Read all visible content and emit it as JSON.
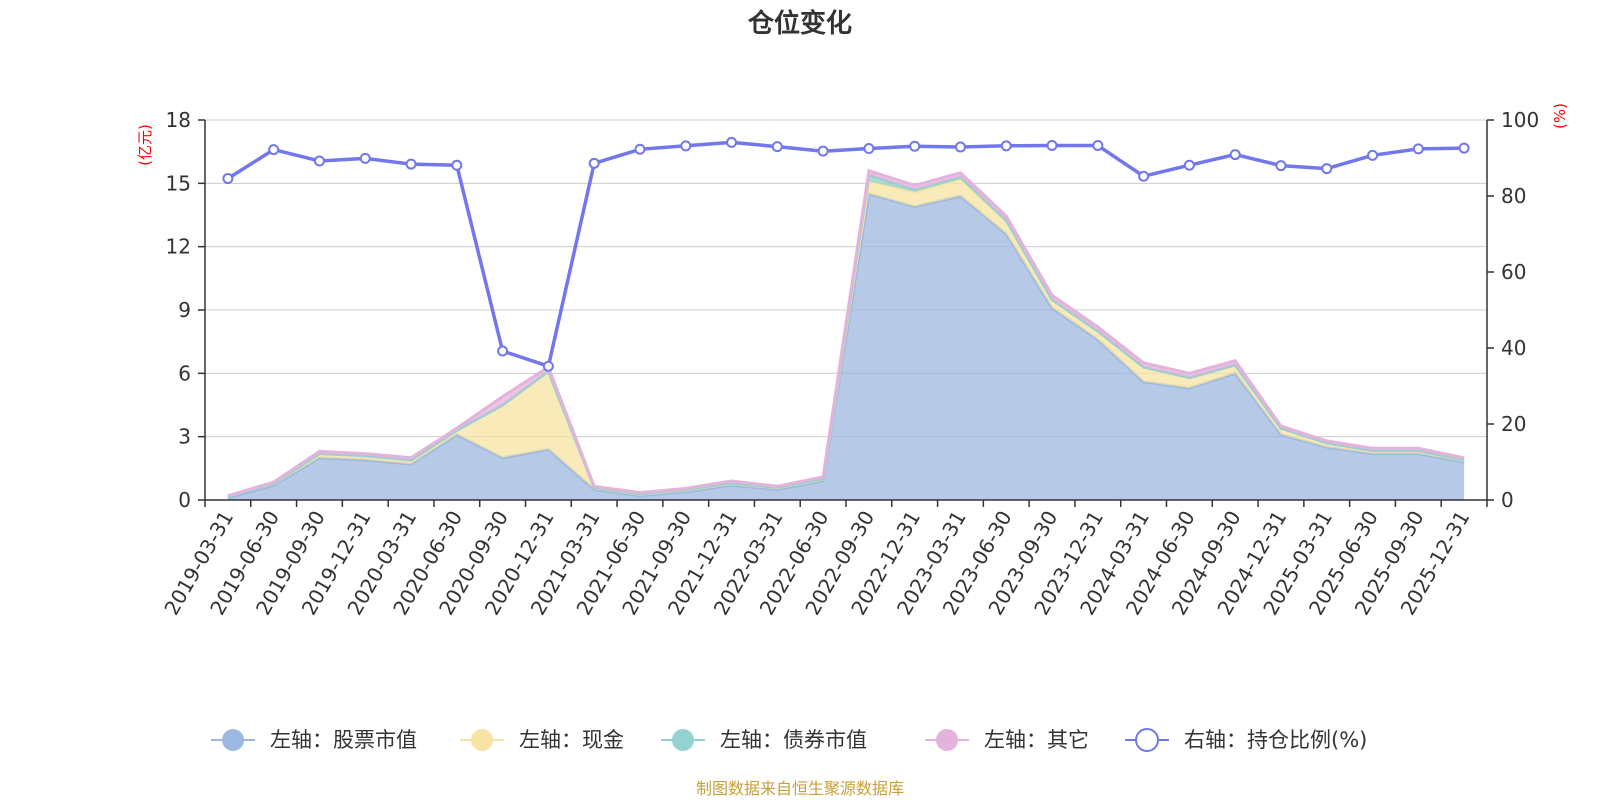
{
  "chart_data": {
    "type": "area",
    "title": "仓位变化",
    "source": "制图数据来自恒生聚源数据库",
    "left_axis": {
      "unit": "(亿元)",
      "ticks": [
        "0",
        "3",
        "6",
        "9",
        "12",
        "15",
        "18"
      ],
      "range": [
        0,
        18
      ]
    },
    "right_axis": {
      "unit": "(%)",
      "ticks": [
        "0",
        "20",
        "40",
        "60",
        "80",
        "100"
      ],
      "range": [
        0,
        100
      ]
    },
    "categories": [
      "2019-03-31",
      "2019-06-30",
      "2019-09-30",
      "2019-12-31",
      "2020-03-31",
      "2020-06-30",
      "2020-09-30",
      "2020-12-31",
      "2021-03-31",
      "2021-06-30",
      "2021-09-30",
      "2021-12-31",
      "2022-03-31",
      "2022-06-30",
      "2022-09-30",
      "2022-12-31",
      "2023-03-31",
      "2023-06-30",
      "2023-09-30",
      "2023-12-31",
      "2024-03-31",
      "2024-06-30",
      "2024-09-30",
      "2024-12-31",
      "2025-03-31",
      "2025-06-30",
      "2025-09-30",
      "2025-12-31"
    ],
    "series": [
      {
        "name": "左轴：股票市值",
        "axis": "left",
        "color": "#9db8e0",
        "values": [
          0.1,
          0.7,
          2.0,
          1.9,
          1.7,
          3.1,
          2.0,
          2.4,
          0.5,
          0.2,
          0.4,
          0.7,
          0.5,
          0.9,
          14.5,
          13.9,
          14.4,
          12.6,
          9.1,
          7.6,
          5.6,
          5.3,
          6.0,
          3.1,
          2.5,
          2.2,
          2.2,
          1.8
        ]
      },
      {
        "name": "左轴：现金",
        "axis": "left",
        "color": "#f7e3a3",
        "values": [
          0.05,
          0.1,
          0.2,
          0.2,
          0.2,
          0.2,
          2.5,
          3.7,
          0.1,
          0.1,
          0.1,
          0.1,
          0.1,
          0.1,
          0.6,
          0.7,
          0.8,
          0.6,
          0.4,
          0.4,
          0.7,
          0.5,
          0.4,
          0.3,
          0.2,
          0.15,
          0.15,
          0.1
        ]
      },
      {
        "name": "左轴：债券市值",
        "axis": "left",
        "color": "#93d2d0",
        "values": [
          0,
          0,
          0,
          0,
          0,
          0,
          0,
          0,
          0,
          0,
          0,
          0,
          0,
          0,
          0.3,
          0.1,
          0.1,
          0.05,
          0,
          0,
          0,
          0,
          0,
          0,
          0,
          0,
          0,
          0
        ]
      },
      {
        "name": "左轴：其它",
        "axis": "left",
        "color": "#e4b3dc",
        "values": [
          0.05,
          0.05,
          0.1,
          0.1,
          0.1,
          0.1,
          0.4,
          0.2,
          0.05,
          0.05,
          0.05,
          0.1,
          0.05,
          0.1,
          0.2,
          0.2,
          0.2,
          0.2,
          0.2,
          0.2,
          0.2,
          0.2,
          0.2,
          0.1,
          0.1,
          0.1,
          0.1,
          0.1
        ]
      },
      {
        "name": "右轴：持仓比例(%)",
        "axis": "right",
        "color": "#7277ec",
        "values": [
          84.6,
          92.2,
          89.2,
          89.9,
          88.4,
          88.1,
          39.2,
          35.2,
          88.6,
          92.3,
          93.2,
          94.1,
          93.0,
          91.8,
          92.5,
          93.1,
          92.9,
          93.2,
          93.3,
          93.3,
          85.2,
          88.1,
          90.9,
          88.0,
          87.2,
          90.7,
          92.4,
          92.6
        ]
      }
    ]
  }
}
